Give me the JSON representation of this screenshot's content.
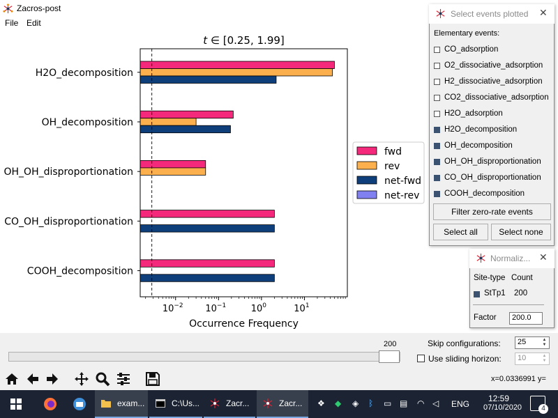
{
  "window": {
    "title": "Zacros-post",
    "menu": [
      "File",
      "Edit"
    ]
  },
  "chart_data": {
    "type": "bar",
    "orientation": "horizontal",
    "title": "t ∈ [0.25, 1.99]",
    "title_italic_part": "t",
    "title_rest": "∈ [0.25, 1.99]",
    "xlabel": "Occurrence Frequency",
    "xscale": "log",
    "xlim": [
      0.0015,
      100
    ],
    "xticks": [
      {
        "value": 0.01,
        "base": "10",
        "exp": "−2"
      },
      {
        "value": 0.1,
        "base": "10",
        "exp": "−1"
      },
      {
        "value": 1,
        "base": "10",
        "exp": "0"
      },
      {
        "value": 10,
        "base": "10",
        "exp": "1"
      }
    ],
    "reference_line_x": 0.0028,
    "categories": [
      "H2O_decomposition",
      "OH_decomposition",
      "OH_OH_disproportionation",
      "CO_OH_disproportionation",
      "COOH_decomposition"
    ],
    "series": [
      {
        "name": "fwd",
        "color": "#f5297c",
        "values": [
          50,
          0.22,
          0.05,
          2.0,
          2.0
        ]
      },
      {
        "name": "rev",
        "color": "#fbb04d",
        "values": [
          45,
          0.03,
          0.05,
          null,
          null
        ]
      },
      {
        "name": "net-fwd",
        "color": "#0f3f7a",
        "values": [
          2.2,
          0.19,
          null,
          2.0,
          2.0
        ]
      },
      {
        "name": "net-rev",
        "color": "#8080f0",
        "values": [
          null,
          null,
          null,
          null,
          null
        ]
      }
    ],
    "legend_position": "right"
  },
  "controls": {
    "slider_max_label": "200",
    "skip_label": "Skip configurations:",
    "skip_value": "25",
    "sliding_label": "Use sliding horizon:",
    "sliding_value": "10",
    "coords_text": "x=0.0336991   y="
  },
  "toolbar": [
    "home-icon",
    "back-icon",
    "forward-icon",
    "pan-icon",
    "zoom-icon",
    "configure-icon",
    "save-icon"
  ],
  "events_dialog": {
    "title": "Select events plotted",
    "subtitle": "Elementary events:",
    "events": [
      {
        "label": "CO_adsorption",
        "checked": false
      },
      {
        "label": "O2_dissociative_adsorption",
        "checked": false
      },
      {
        "label": "H2_dissociative_adsorption",
        "checked": false
      },
      {
        "label": "CO2_dissociative_adsorption",
        "checked": false
      },
      {
        "label": "H2O_adsorption",
        "checked": false
      },
      {
        "label": "H2O_decomposition",
        "checked": true
      },
      {
        "label": "OH_decomposition",
        "checked": true
      },
      {
        "label": "OH_OH_disproportionation",
        "checked": true
      },
      {
        "label": "CO_OH_disproportionation",
        "checked": true
      },
      {
        "label": "COOH_decomposition",
        "checked": true
      }
    ],
    "filter_button": "Filter zero-rate events",
    "select_all": "Select all",
    "select_none": "Select none"
  },
  "normalize_dialog": {
    "title": "Normaliz...",
    "col_site": "Site-type",
    "col_count": "Count",
    "row_site": "StTp1",
    "row_count": "200",
    "factor_label": "Factor",
    "factor_value": "200.0"
  },
  "taskbar": {
    "items": [
      {
        "label": "exam..."
      },
      {
        "label": "C:\\Us..."
      },
      {
        "label": "Zacr..."
      },
      {
        "label": "Zacr..."
      }
    ],
    "language": "ENG",
    "time": "12:59",
    "date": "07/10/2020",
    "notifications": "4"
  }
}
